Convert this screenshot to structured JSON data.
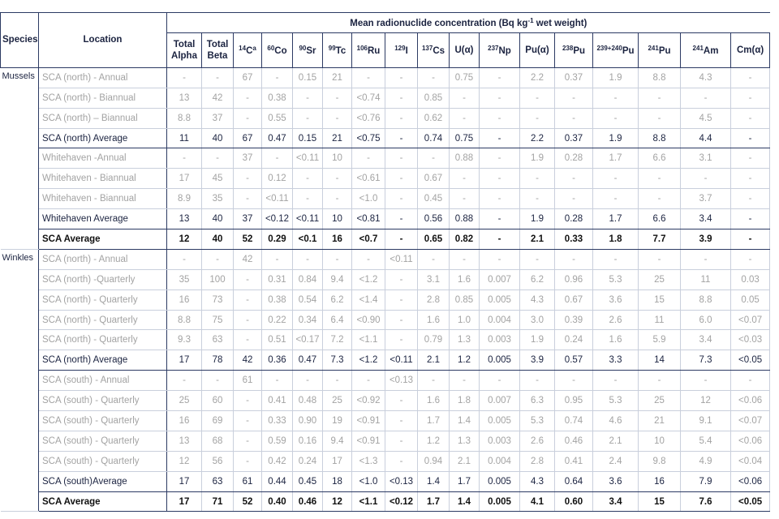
{
  "table": {
    "title": {
      "text": "Mean radionuclide concentration (Bq kg",
      "sup": "-1",
      "tail": " wet weight)"
    },
    "species_header": "Species",
    "location_header": "Location",
    "columns": [
      {
        "main": "Total Alpha"
      },
      {
        "main": "Total Beta"
      },
      {
        "pre": "14",
        "main": "C",
        "note": "a"
      },
      {
        "pre": "60",
        "main": "Co"
      },
      {
        "pre": "90",
        "main": "Sr"
      },
      {
        "pre": "99",
        "main": "Tc"
      },
      {
        "pre": "106",
        "main": "Ru"
      },
      {
        "pre": "129",
        "main": "I"
      },
      {
        "pre": "137",
        "main": "Cs"
      },
      {
        "main": "U(α)"
      },
      {
        "pre": "237",
        "main": "Np"
      },
      {
        "main": "Pu(α)"
      },
      {
        "pre": "238",
        "main": "Pu"
      },
      {
        "pre": "239+240",
        "main": "Pu"
      },
      {
        "pre": "241",
        "main": "Pu"
      },
      {
        "pre": "241",
        "main": "Am"
      },
      {
        "main": "Cm(α)"
      }
    ],
    "groups": [
      {
        "species": "Mussels",
        "rows": [
          {
            "location": "SCA (north) - Annual",
            "emphasis": "light",
            "cells": [
              "-",
              "-",
              "67",
              "-",
              "0.15",
              "21",
              "-",
              "-",
              "-",
              "0.75",
              "-",
              "2.2",
              "0.37",
              "1.9",
              "8.8",
              "4.3",
              "-"
            ]
          },
          {
            "location": "SCA (north) - Biannual",
            "emphasis": "light",
            "cells": [
              "13",
              "42",
              "-",
              "0.38",
              "-",
              "-",
              "<0.74",
              "-",
              "0.85",
              "-",
              "-",
              "-",
              "-",
              "-",
              "-",
              "-",
              "-"
            ]
          },
          {
            "location": "SCA (north) – Biannual",
            "emphasis": "light",
            "cells": [
              "8.8",
              "37",
              "-",
              "0.55",
              "-",
              "-",
              "<0.76",
              "-",
              "0.62",
              "-",
              "-",
              "-",
              "-",
              "-",
              "-",
              "4.5",
              "-"
            ]
          },
          {
            "location": "SCA (north) Average",
            "emphasis": "normal",
            "cells": [
              "11",
              "40",
              "67",
              "0.47",
              "0.15",
              "21",
              "<0.75",
              "-",
              "0.74",
              "0.75",
              "-",
              "2.2",
              "0.37",
              "1.9",
              "8.8",
              "4.4",
              "-"
            ]
          },
          {
            "location": "Whitehaven -Annual",
            "emphasis": "light",
            "cells": [
              "-",
              "-",
              "37",
              "-",
              "<0.11",
              "10",
              "-",
              "-",
              "-",
              "0.88",
              "-",
              "1.9",
              "0.28",
              "1.7",
              "6.6",
              "3.1",
              "-"
            ]
          },
          {
            "location": "Whitehaven - Biannual",
            "emphasis": "light",
            "cells": [
              "17",
              "45",
              "-",
              "0.12",
              "-",
              "-",
              "<0.61",
              "-",
              "0.67",
              "-",
              "-",
              "-",
              "-",
              "-",
              "-",
              "-",
              "-"
            ]
          },
          {
            "location": "Whitehaven - Biannual",
            "emphasis": "light",
            "cells": [
              "8.9",
              "35",
              "-",
              "<0.11",
              "-",
              "-",
              "<1.0",
              "-",
              "0.45",
              "-",
              "-",
              "-",
              "-",
              "-",
              "-",
              "3.7",
              "-"
            ]
          },
          {
            "location": "Whitehaven Average",
            "emphasis": "normal",
            "cells": [
              "13",
              "40",
              "37",
              "<0.12",
              "<0.11",
              "10",
              "<0.81",
              "-",
              "0.56",
              "0.88",
              "-",
              "1.9",
              "0.28",
              "1.7",
              "6.6",
              "3.4",
              "-"
            ]
          },
          {
            "location": "SCA Average",
            "emphasis": "bold",
            "cells": [
              "12",
              "40",
              "52",
              "0.29",
              "<0.1",
              "16",
              "<0.7",
              "-",
              "0.65",
              "0.82",
              "-",
              "2.1",
              "0.33",
              "1.8",
              "7.7",
              "3.9",
              "-"
            ]
          }
        ]
      },
      {
        "species": "Winkles",
        "rows": [
          {
            "location": "SCA (north) - Annual",
            "emphasis": "light",
            "cells": [
              "-",
              "-",
              "42",
              "-",
              "-",
              "-",
              "-",
              "<0.11",
              "-",
              "-",
              "-",
              "-",
              "-",
              "-",
              "-",
              "-",
              "-"
            ]
          },
          {
            "location": "SCA (north) -Quarterly",
            "emphasis": "light",
            "cells": [
              "35",
              "100",
              "-",
              "0.31",
              "0.84",
              "9.4",
              "<1.2",
              "-",
              "3.1",
              "1.6",
              "0.007",
              "6.2",
              "0.96",
              "5.3",
              "25",
              "11",
              "0.03"
            ]
          },
          {
            "location": "SCA (north) - Quarterly",
            "emphasis": "light",
            "cells": [
              "16",
              "73",
              "-",
              "0.38",
              "0.54",
              "6.2",
              "<1.4",
              "-",
              "2.8",
              "0.85",
              "0.005",
              "4.3",
              "0.67",
              "3.6",
              "15",
              "8.8",
              "0.05"
            ]
          },
          {
            "location": "SCA (north) - Quarterly",
            "emphasis": "light",
            "cells": [
              "8.8",
              "75",
              "-",
              "0.22",
              "0.34",
              "6.4",
              "<0.90",
              "-",
              "1.6",
              "1.0",
              "0.004",
              "3.0",
              "0.39",
              "2.6",
              "11",
              "6.0",
              "<0.07"
            ]
          },
          {
            "location": "SCA (north) - Quarterly",
            "emphasis": "light",
            "cells": [
              "9.3",
              "63",
              "-",
              "0.51",
              "<0.17",
              "7.2",
              "<1.1",
              "-",
              "0.79",
              "1.3",
              "0.003",
              "1.9",
              "0.24",
              "1.6",
              "5.9",
              "3.4",
              "<0.03"
            ]
          },
          {
            "location": "SCA (north) Average",
            "emphasis": "normal",
            "cells": [
              "17",
              "78",
              "42",
              "0.36",
              "0.47",
              "7.3",
              "<1.2",
              "<0.11",
              "2.1",
              "1.2",
              "0.005",
              "3.9",
              "0.57",
              "3.3",
              "14",
              "7.3",
              "<0.05"
            ]
          },
          {
            "location": "SCA (south) - Annual",
            "emphasis": "light",
            "cells": [
              "-",
              "-",
              "61",
              "-",
              "-",
              "-",
              "-",
              "<0.13",
              "-",
              "-",
              "-",
              "-",
              "-",
              "-",
              "-",
              "-",
              "-"
            ]
          },
          {
            "location": "SCA (south) - Quarterly",
            "emphasis": "light",
            "cells": [
              "25",
              "60",
              "-",
              "0.41",
              "0.48",
              "25",
              "<0.92",
              "-",
              "1.6",
              "1.8",
              "0.007",
              "6.3",
              "0.95",
              "5.3",
              "25",
              "12",
              "<0.06"
            ]
          },
          {
            "location": "SCA (south) - Quarterly",
            "emphasis": "light",
            "cells": [
              "16",
              "69",
              "-",
              "0.33",
              "0.90",
              "19",
              "<0.91",
              "-",
              "1.7",
              "1.4",
              "0.005",
              "5.3",
              "0.74",
              "4.6",
              "21",
              "9.1",
              "<0.07"
            ]
          },
          {
            "location": "SCA (south) - Quarterly",
            "emphasis": "light",
            "cells": [
              "13",
              "68",
              "-",
              "0.59",
              "0.16",
              "9.4",
              "<0.91",
              "-",
              "1.2",
              "1.3",
              "0.003",
              "2.6",
              "0.46",
              "2.1",
              "10",
              "5.4",
              "<0.06"
            ]
          },
          {
            "location": "SCA (south) - Quarterly",
            "emphasis": "light",
            "cells": [
              "12",
              "56",
              "-",
              "0.42",
              "0.24",
              "17",
              "<1.3",
              "-",
              "0.94",
              "2.1",
              "0.004",
              "2.8",
              "0.41",
              "2.4",
              "9.8",
              "4.9",
              "<0.04"
            ]
          },
          {
            "location": "SCA (south)Average",
            "emphasis": "normal",
            "cells": [
              "17",
              "63",
              "61",
              "0.44",
              "0.45",
              "18",
              "<1.0",
              "<0.13",
              "1.4",
              "1.7",
              "0.005",
              "4.3",
              "0.64",
              "3.6",
              "16",
              "7.9",
              "<0.06"
            ]
          },
          {
            "location": "SCA Average",
            "emphasis": "bold",
            "cells": [
              "17",
              "71",
              "52",
              "0.40",
              "0.46",
              "12",
              "<1.1",
              "<0.12",
              "1.7",
              "1.4",
              "0.005",
              "4.1",
              "0.60",
              "3.4",
              "15",
              "7.6",
              "<0.05"
            ]
          }
        ]
      }
    ]
  }
}
